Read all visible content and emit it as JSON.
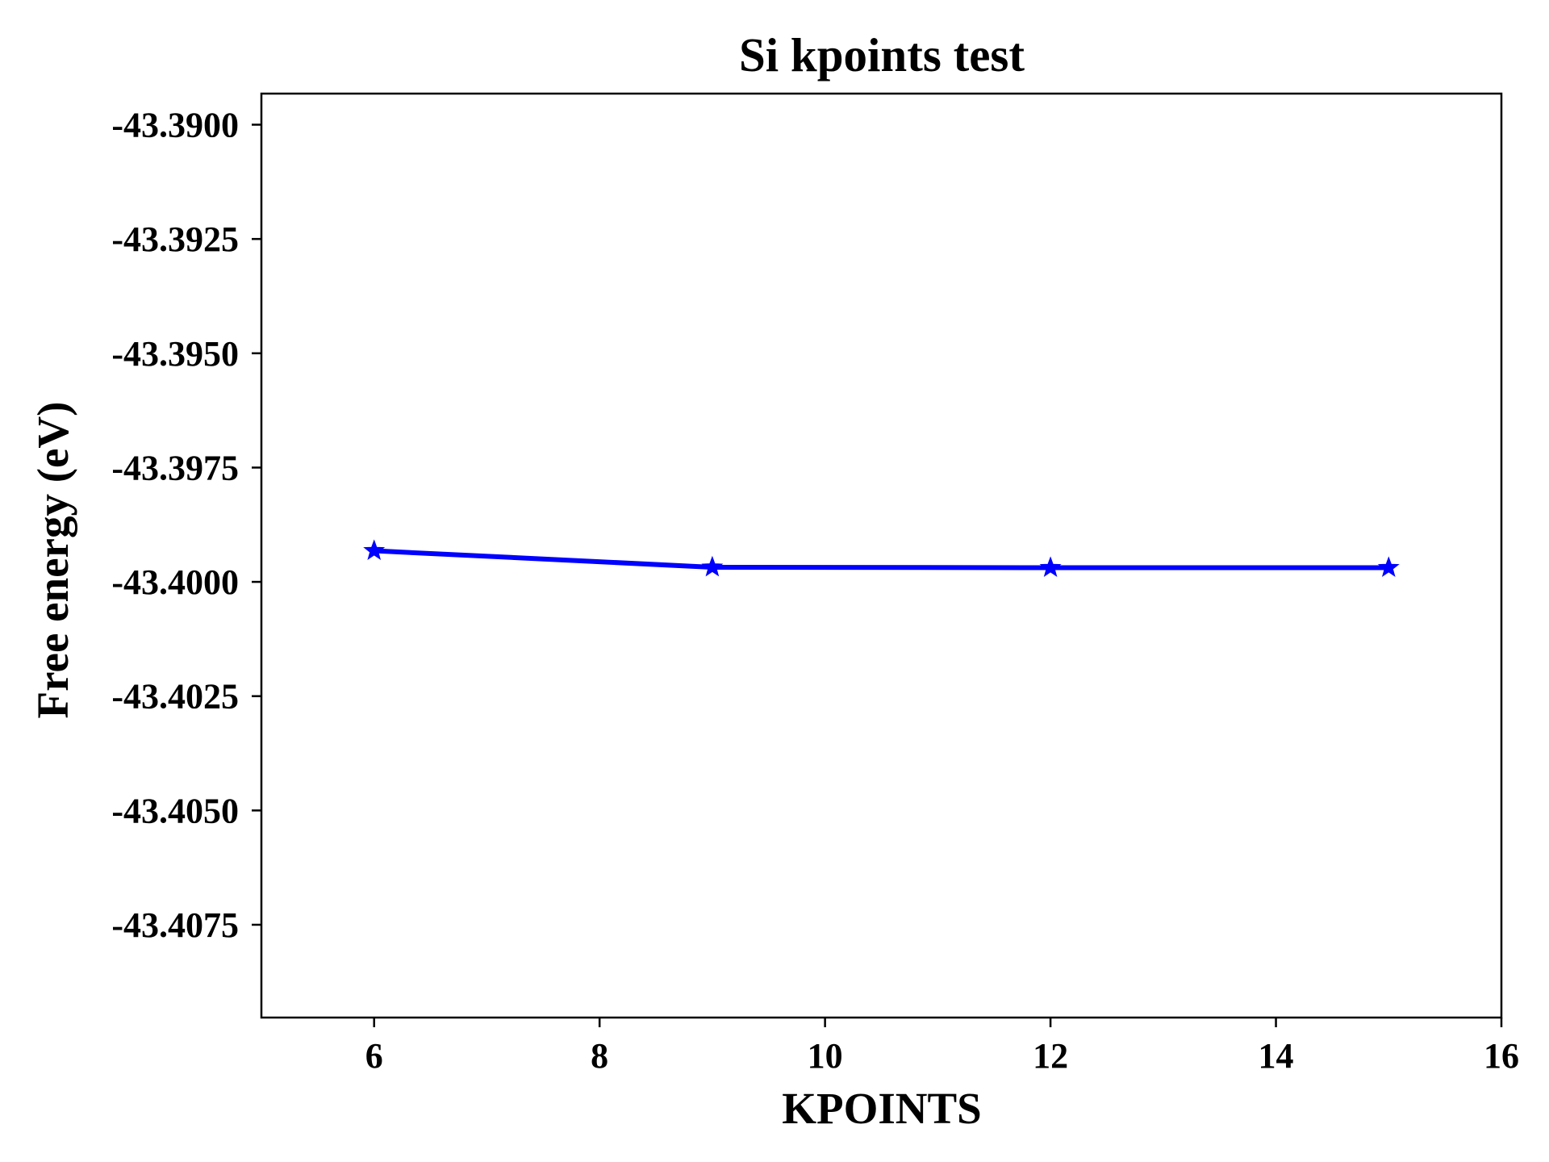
{
  "chart_data": {
    "type": "line",
    "title": "Si kpoints test",
    "xlabel": "KPOINTS",
    "ylabel": "Free energy (eV)",
    "xlim": [
      5,
      16
    ],
    "ylim": [
      -43.40953,
      -43.38932
    ],
    "x_ticks": [
      6,
      8,
      10,
      12,
      14,
      16
    ],
    "x_tick_labels": [
      "6",
      "8",
      "10",
      "12",
      "14",
      "16"
    ],
    "y_ticks": [
      -43.39,
      -43.3925,
      -43.395,
      -43.3975,
      -43.4,
      -43.4025,
      -43.405,
      -43.4075
    ],
    "y_tick_labels": [
      "-43.3900",
      "-43.3925",
      "-43.3950",
      "-43.3975",
      "-43.4000",
      "-43.4025",
      "-43.4050",
      "-43.4075"
    ],
    "grid": false,
    "series": [
      {
        "x": [
          6,
          9,
          12,
          15
        ],
        "y": [
          -43.39932,
          -43.39968,
          -43.39969,
          -43.39969
        ],
        "color": "#0000ff",
        "marker": "star"
      }
    ]
  }
}
